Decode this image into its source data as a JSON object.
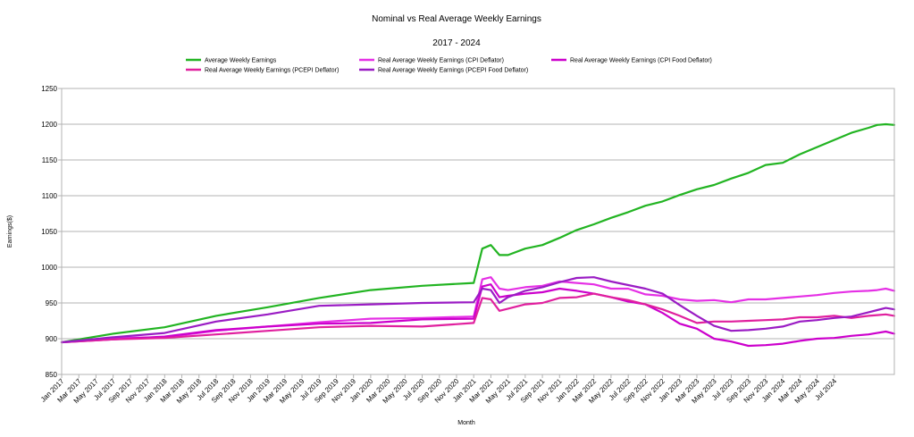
{
  "chart_data": {
    "type": "line",
    "title": "Nominal vs Real Average Weekly Earnings",
    "subtitle": "2017 - 2024",
    "xlabel": "Month",
    "ylabel": "Earnings($)",
    "ylim": [
      850,
      1250
    ],
    "yticks": [
      850,
      900,
      950,
      1000,
      1050,
      1100,
      1150,
      1200,
      1250
    ],
    "grid": "horizontal",
    "legend_position": "top-center",
    "x_tick_labels": [
      "Jan 2017",
      "Mar 2017",
      "May 2017",
      "Jul 2017",
      "Sep 2017",
      "Nov 2017",
      "Jan 2018",
      "Mar 2018",
      "May 2018",
      "Jul 2018",
      "Sep 2018",
      "Nov 2018",
      "Jan 2019",
      "Mar 2019",
      "May 2019",
      "Jul 2019",
      "Sep 2019",
      "Nov 2019",
      "Jan 2020",
      "Mar 2020",
      "May 2020",
      "Jul 2020",
      "Sep 2020",
      "Nov 2020",
      "Jan 2021",
      "Mar 2021",
      "May 2021",
      "Jul 2021",
      "Sep 2021",
      "Nov 2021",
      "Jan 2022",
      "Mar 2022",
      "May 2022",
      "Jul 2022",
      "Sep 2022",
      "Nov 2022",
      "Jan 2023",
      "Mar 2023",
      "May 2023",
      "Jul 2023",
      "Sep 2023",
      "Nov 2023",
      "Jan 2024",
      "Mar 2024",
      "May 2024",
      "Jul 2024"
    ],
    "x_tick_step": 2,
    "series": [
      {
        "name": "Average Weekly Earnings",
        "color": "#22b422",
        "values": [
          [
            0,
            895
          ],
          [
            6,
            907
          ],
          [
            12,
            916
          ],
          [
            18,
            932
          ],
          [
            24,
            944
          ],
          [
            30,
            957
          ],
          [
            36,
            968
          ],
          [
            42,
            974
          ],
          [
            48,
            978
          ],
          [
            49,
            1026
          ],
          [
            50,
            1031
          ],
          [
            51,
            1017
          ],
          [
            52,
            1017
          ],
          [
            54,
            1026
          ],
          [
            56,
            1031
          ],
          [
            58,
            1041
          ],
          [
            60,
            1052
          ],
          [
            62,
            1060
          ],
          [
            64,
            1069
          ],
          [
            66,
            1077
          ],
          [
            68,
            1086
          ],
          [
            70,
            1092
          ],
          [
            72,
            1101
          ],
          [
            74,
            1109
          ],
          [
            76,
            1115
          ],
          [
            78,
            1124
          ],
          [
            80,
            1132
          ],
          [
            82,
            1143
          ],
          [
            84,
            1146
          ],
          [
            86,
            1158
          ],
          [
            88,
            1168
          ],
          [
            90,
            1178
          ],
          [
            92,
            1188
          ],
          [
            94,
            1195
          ],
          [
            95,
            1199
          ],
          [
            96,
            1200
          ],
          [
            97,
            1199
          ]
        ]
      },
      {
        "name": "Real Average Weekly Earnings (CPI Deflator)",
        "color": "#e530e5",
        "values": [
          [
            0,
            895
          ],
          [
            6,
            901
          ],
          [
            12,
            902
          ],
          [
            18,
            911
          ],
          [
            24,
            917
          ],
          [
            30,
            923
          ],
          [
            36,
            928
          ],
          [
            42,
            929
          ],
          [
            48,
            931
          ],
          [
            49,
            983
          ],
          [
            50,
            986
          ],
          [
            51,
            970
          ],
          [
            52,
            968
          ],
          [
            54,
            972
          ],
          [
            56,
            974
          ],
          [
            58,
            980
          ],
          [
            60,
            978
          ],
          [
            62,
            976
          ],
          [
            64,
            970
          ],
          [
            66,
            970
          ],
          [
            68,
            962
          ],
          [
            70,
            960
          ],
          [
            72,
            955
          ],
          [
            74,
            953
          ],
          [
            76,
            954
          ],
          [
            78,
            951
          ],
          [
            80,
            955
          ],
          [
            82,
            955
          ],
          [
            84,
            957
          ],
          [
            86,
            959
          ],
          [
            88,
            961
          ],
          [
            90,
            964
          ],
          [
            92,
            966
          ],
          [
            94,
            967
          ],
          [
            95,
            968
          ],
          [
            96,
            970
          ],
          [
            97,
            967
          ]
        ]
      },
      {
        "name": "Real Average Weekly Earnings (CPI Food Deflator)",
        "color": "#cc00cc",
        "values": [
          [
            0,
            895
          ],
          [
            6,
            899
          ],
          [
            12,
            903
          ],
          [
            18,
            912
          ],
          [
            24,
            917
          ],
          [
            30,
            921
          ],
          [
            36,
            922
          ],
          [
            42,
            927
          ],
          [
            48,
            928
          ],
          [
            49,
            973
          ],
          [
            50,
            976
          ],
          [
            51,
            958
          ],
          [
            52,
            960
          ],
          [
            54,
            963
          ],
          [
            56,
            965
          ],
          [
            58,
            970
          ],
          [
            60,
            967
          ],
          [
            62,
            963
          ],
          [
            64,
            958
          ],
          [
            66,
            952
          ],
          [
            68,
            948
          ],
          [
            70,
            936
          ],
          [
            72,
            921
          ],
          [
            74,
            914
          ],
          [
            76,
            900
          ],
          [
            78,
            896
          ],
          [
            80,
            890
          ],
          [
            82,
            891
          ],
          [
            84,
            893
          ],
          [
            86,
            897
          ],
          [
            88,
            900
          ],
          [
            90,
            901
          ],
          [
            92,
            904
          ],
          [
            94,
            906
          ],
          [
            95,
            908
          ],
          [
            96,
            910
          ],
          [
            97,
            907
          ]
        ]
      },
      {
        "name": "Real Average Weekly Earnings (PCEPI Deflator)",
        "color": "#e0209e",
        "values": [
          [
            0,
            895
          ],
          [
            6,
            899
          ],
          [
            12,
            901
          ],
          [
            18,
            906
          ],
          [
            24,
            911
          ],
          [
            30,
            916
          ],
          [
            36,
            918
          ],
          [
            42,
            917
          ],
          [
            48,
            922
          ],
          [
            49,
            957
          ],
          [
            50,
            955
          ],
          [
            51,
            939
          ],
          [
            52,
            942
          ],
          [
            54,
            948
          ],
          [
            56,
            950
          ],
          [
            58,
            957
          ],
          [
            60,
            958
          ],
          [
            62,
            963
          ],
          [
            64,
            958
          ],
          [
            66,
            954
          ],
          [
            68,
            948
          ],
          [
            70,
            941
          ],
          [
            72,
            932
          ],
          [
            74,
            922
          ],
          [
            76,
            924
          ],
          [
            78,
            924
          ],
          [
            80,
            925
          ],
          [
            82,
            926
          ],
          [
            84,
            927
          ],
          [
            86,
            930
          ],
          [
            88,
            930
          ],
          [
            90,
            932
          ],
          [
            92,
            929
          ],
          [
            94,
            932
          ],
          [
            95,
            933
          ],
          [
            96,
            934
          ],
          [
            97,
            932
          ]
        ]
      },
      {
        "name": "Real Average Weekly Earnings (PCEPI Food Deflator)",
        "color": "#9a1cc4",
        "values": [
          [
            0,
            895
          ],
          [
            6,
            902
          ],
          [
            12,
            908
          ],
          [
            18,
            924
          ],
          [
            24,
            934
          ],
          [
            30,
            946
          ],
          [
            36,
            948
          ],
          [
            42,
            950
          ],
          [
            48,
            951
          ],
          [
            49,
            970
          ],
          [
            50,
            968
          ],
          [
            51,
            950
          ],
          [
            52,
            958
          ],
          [
            54,
            967
          ],
          [
            56,
            972
          ],
          [
            58,
            979
          ],
          [
            60,
            985
          ],
          [
            62,
            986
          ],
          [
            64,
            980
          ],
          [
            66,
            975
          ],
          [
            68,
            970
          ],
          [
            70,
            963
          ],
          [
            72,
            947
          ],
          [
            74,
            932
          ],
          [
            76,
            918
          ],
          [
            78,
            911
          ],
          [
            80,
            912
          ],
          [
            82,
            914
          ],
          [
            84,
            917
          ],
          [
            86,
            924
          ],
          [
            88,
            926
          ],
          [
            90,
            929
          ],
          [
            92,
            931
          ],
          [
            94,
            937
          ],
          [
            95,
            940
          ],
          [
            96,
            943
          ],
          [
            97,
            941
          ]
        ]
      }
    ]
  }
}
